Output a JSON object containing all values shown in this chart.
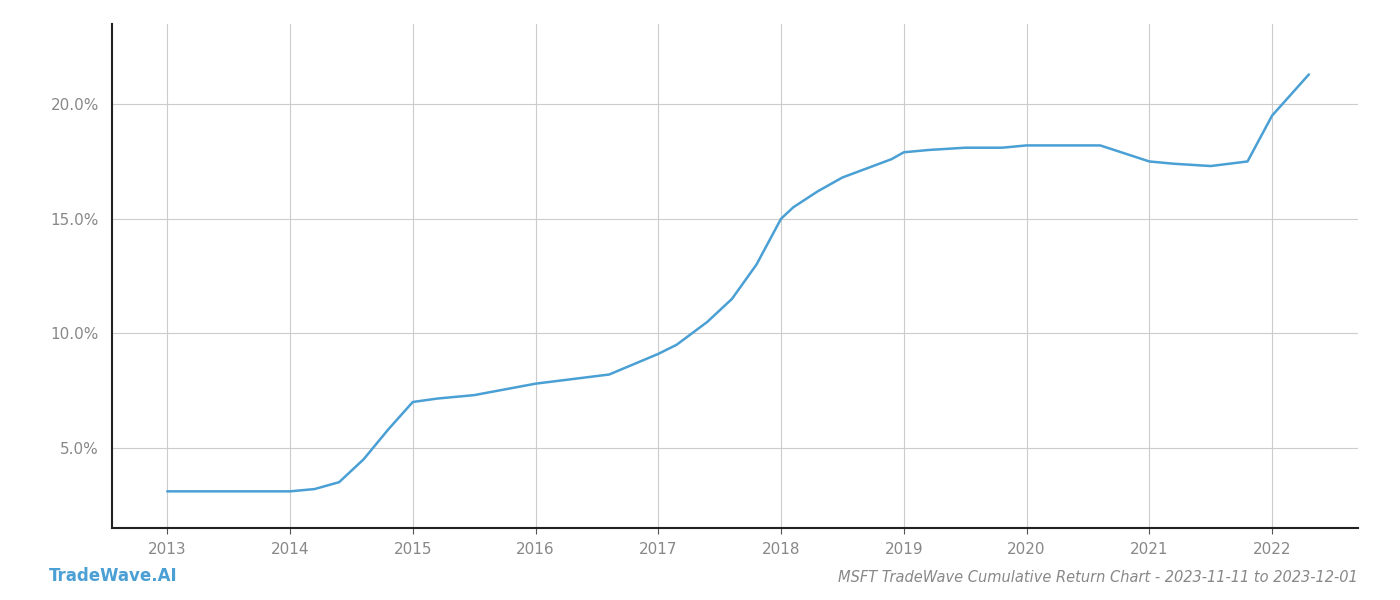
{
  "title": "MSFT TradeWave Cumulative Return Chart - 2023-11-11 to 2023-12-01",
  "watermark": "TradeWave.AI",
  "line_color": "#4a9fd4",
  "background_color": "#ffffff",
  "grid_color": "#cccccc",
  "x_values": [
    2013.0,
    2013.25,
    2013.5,
    2013.75,
    2014.0,
    2014.1,
    2014.2,
    2014.4,
    2014.6,
    2014.8,
    2015.0,
    2015.2,
    2015.5,
    2015.8,
    2016.0,
    2016.3,
    2016.6,
    2017.0,
    2017.15,
    2017.4,
    2017.6,
    2017.8,
    2018.0,
    2018.1,
    2018.3,
    2018.5,
    2018.7,
    2018.9,
    2019.0,
    2019.2,
    2019.5,
    2019.8,
    2020.0,
    2020.3,
    2020.6,
    2021.0,
    2021.2,
    2021.5,
    2021.8,
    2022.0,
    2022.3
  ],
  "y_values": [
    3.1,
    3.1,
    3.1,
    3.1,
    3.1,
    3.15,
    3.2,
    3.5,
    4.5,
    5.8,
    7.0,
    7.15,
    7.3,
    7.6,
    7.8,
    8.0,
    8.2,
    9.1,
    9.5,
    10.5,
    11.5,
    13.0,
    15.0,
    15.5,
    16.2,
    16.8,
    17.2,
    17.6,
    17.9,
    18.0,
    18.1,
    18.1,
    18.2,
    18.2,
    18.2,
    17.5,
    17.4,
    17.3,
    17.5,
    19.5,
    21.3
  ],
  "xlim": [
    2012.55,
    2022.7
  ],
  "ylim": [
    1.5,
    23.5
  ],
  "yticks": [
    5.0,
    10.0,
    15.0,
    20.0
  ],
  "ytick_labels": [
    "5.0%",
    "10.0%",
    "15.0%",
    "20.0%"
  ],
  "xticks": [
    2013,
    2014,
    2015,
    2016,
    2017,
    2018,
    2019,
    2020,
    2021,
    2022
  ],
  "tick_color": "#888888",
  "title_fontsize": 10.5,
  "watermark_fontsize": 12,
  "line_width": 1.8,
  "axis_label_fontsize": 11
}
